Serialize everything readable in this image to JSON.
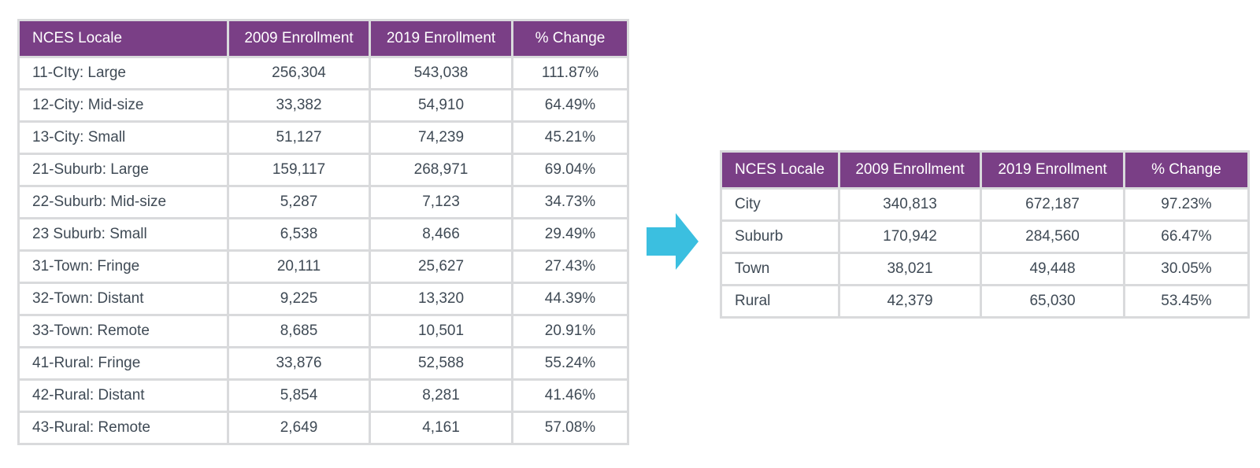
{
  "colors": {
    "header_bg": "#7a3f86",
    "header_text": "#ffffff",
    "grid": "#d9dadc",
    "body_text": "#3f4a55",
    "arrow": "#3bbfe0"
  },
  "icons": {
    "arrow": "right-arrow-icon"
  },
  "detail_table": {
    "headers": [
      "NCES Locale",
      "2009 Enrollment",
      "2019 Enrollment",
      "% Change"
    ],
    "rows": [
      [
        "11-CIty: Large",
        "256,304",
        "543,038",
        "111.87%"
      ],
      [
        "12-City: Mid-size",
        "33,382",
        "54,910",
        "64.49%"
      ],
      [
        "13-City: Small",
        "51,127",
        "74,239",
        "45.21%"
      ],
      [
        "21-Suburb: Large",
        "159,117",
        "268,971",
        "69.04%"
      ],
      [
        "22-Suburb: Mid-size",
        "5,287",
        "7,123",
        "34.73%"
      ],
      [
        "23 Suburb: Small",
        "6,538",
        "8,466",
        "29.49%"
      ],
      [
        "31-Town: Fringe",
        "20,111",
        "25,627",
        "27.43%"
      ],
      [
        "32-Town: Distant",
        "9,225",
        "13,320",
        "44.39%"
      ],
      [
        "33-Town: Remote",
        "8,685",
        "10,501",
        "20.91%"
      ],
      [
        "41-Rural: Fringe",
        "33,876",
        "52,588",
        "55.24%"
      ],
      [
        "42-Rural: Distant",
        "5,854",
        "8,281",
        "41.46%"
      ],
      [
        "43-Rural: Remote",
        "2,649",
        "4,161",
        "57.08%"
      ]
    ]
  },
  "summary_table": {
    "headers": [
      "NCES Locale",
      "2009 Enrollment",
      "2019 Enrollment",
      "% Change"
    ],
    "rows": [
      [
        "City",
        "340,813",
        "672,187",
        "97.23%"
      ],
      [
        "Suburb",
        "170,942",
        "284,560",
        "66.47%"
      ],
      [
        "Town",
        "38,021",
        "49,448",
        "30.05%"
      ],
      [
        "Rural",
        "42,379",
        "65,030",
        "53.45%"
      ]
    ]
  }
}
